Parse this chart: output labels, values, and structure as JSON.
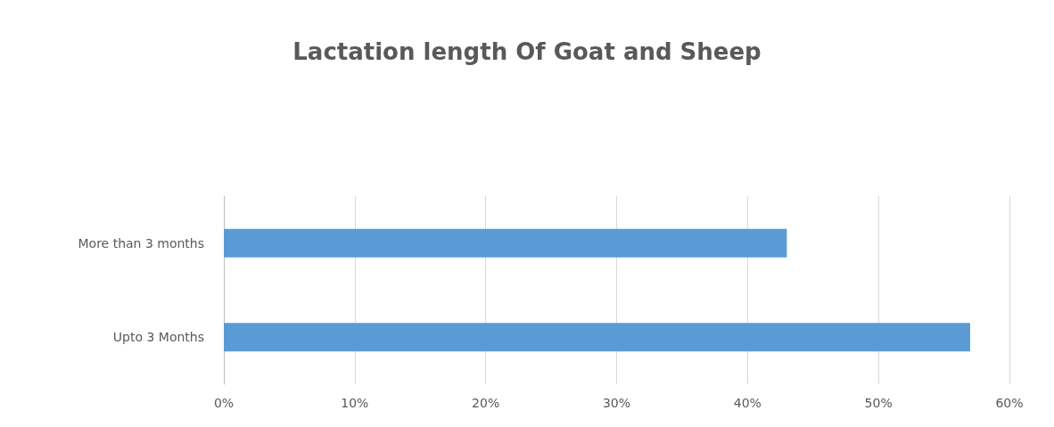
{
  "chart_data": {
    "type": "bar",
    "orientation": "horizontal",
    "title": "Lactation length Of Goat and Sheep",
    "categories": [
      "More than 3 months",
      "Upto 3 Months"
    ],
    "values": [
      43,
      57
    ],
    "color": "#5b9bd5",
    "xlim": [
      0,
      60
    ],
    "xticks": [
      {
        "value": 0,
        "label": "0%"
      },
      {
        "value": 10,
        "label": "10%"
      },
      {
        "value": 20,
        "label": "20%"
      },
      {
        "value": 30,
        "label": "30%"
      },
      {
        "value": 40,
        "label": "40%"
      },
      {
        "value": 50,
        "label": "50%"
      },
      {
        "value": 60,
        "label": "60%"
      }
    ],
    "grid": "x"
  }
}
